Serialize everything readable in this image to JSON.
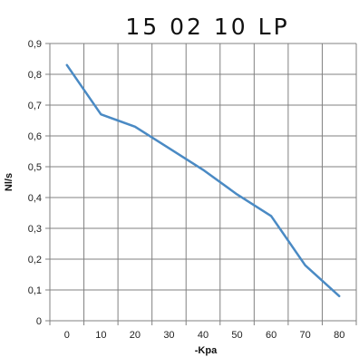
{
  "chart_data": {
    "type": "line",
    "title": "15 02 10 LP",
    "xlabel": "-Kpa",
    "ylabel": "Nl/s",
    "x_ticks": [
      "0",
      "10",
      "20",
      "30",
      "40",
      "50",
      "60",
      "70",
      "80"
    ],
    "y_ticks": [
      "0",
      "0,1",
      "0,2",
      "0,3",
      "0,4",
      "0,5",
      "0,6",
      "0,7",
      "0,8",
      "0,9"
    ],
    "xlim": [
      -5,
      85
    ],
    "ylim": [
      0,
      0.9
    ],
    "grid": true,
    "legend": "none",
    "series": [
      {
        "color": "#4a8ac4",
        "x": [
          0,
          10,
          20,
          30,
          40,
          50,
          60,
          70,
          80
        ],
        "y": [
          0.83,
          0.67,
          0.63,
          0.56,
          0.49,
          0.41,
          0.34,
          0.18,
          0.08
        ]
      }
    ]
  }
}
